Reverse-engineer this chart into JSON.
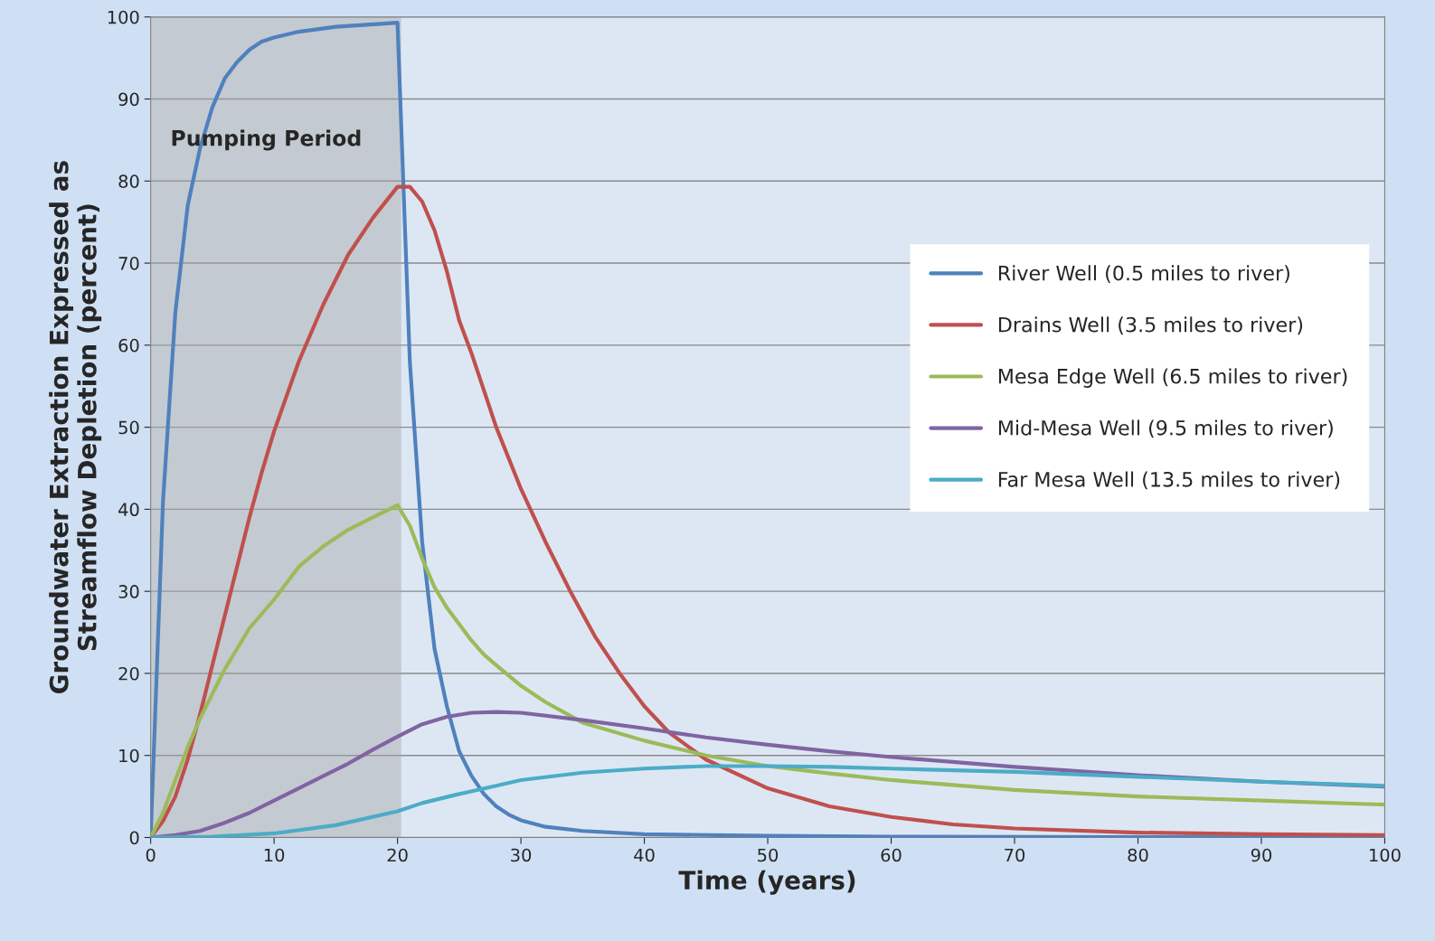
{
  "chart_data": {
    "type": "line",
    "xlabel": "Time (years)",
    "ylabel": "Groundwater Extraction Expressed as\nStreamflow Depletion (percent)",
    "xlim": [
      0,
      100
    ],
    "xticks": [
      0,
      10,
      20,
      30,
      40,
      50,
      60,
      70,
      80,
      90,
      100
    ],
    "ylim": [
      0,
      100
    ],
    "yticks": [
      0,
      10,
      20,
      30,
      40,
      50,
      60,
      70,
      80,
      90,
      100
    ],
    "grid": "y",
    "legend": "right",
    "line_style": "solid",
    "bands": [
      {
        "axis": "x",
        "from": 0,
        "to": 20.3,
        "label": "Pumping Period",
        "color": "#a6a6a6"
      }
    ],
    "series": [
      {
        "name": "River Well (0.5 miles to river)",
        "color": "#4f81bd",
        "x": [
          0,
          1,
          2,
          3,
          4,
          5,
          6,
          7,
          8,
          9,
          10,
          12,
          15,
          20,
          21,
          22,
          23,
          24,
          25,
          26,
          27,
          28,
          29,
          30,
          32,
          35,
          40,
          50,
          60,
          100
        ],
        "values": [
          0,
          41,
          64,
          77,
          84,
          89,
          92.5,
          94.5,
          96,
          97,
          97.5,
          98.2,
          98.8,
          99.3,
          58,
          36,
          23,
          16,
          10.5,
          7.5,
          5.3,
          3.8,
          2.8,
          2.1,
          1.3,
          0.8,
          0.4,
          0.2,
          0.1,
          0
        ]
      },
      {
        "name": "Drains Well (3.5 miles to river)",
        "color": "#c0504d",
        "x": [
          0,
          1,
          2,
          3,
          4,
          5,
          6,
          7,
          8,
          9,
          10,
          12,
          14,
          16,
          18,
          20,
          21,
          22,
          23,
          24,
          25,
          26,
          28,
          30,
          32,
          34,
          36,
          38,
          40,
          42,
          45,
          50,
          55,
          60,
          65,
          70,
          80,
          90,
          100
        ],
        "values": [
          0,
          2,
          5,
          9.5,
          15,
          21,
          27,
          33,
          39,
          44.5,
          49.5,
          58,
          65,
          71,
          75.5,
          79.3,
          79.3,
          77.5,
          74,
          69,
          63,
          59,
          50,
          42.5,
          36,
          30,
          24.5,
          20,
          16,
          12.8,
          9.5,
          6,
          3.8,
          2.5,
          1.6,
          1.1,
          0.6,
          0.4,
          0.3
        ]
      },
      {
        "name": "Mesa Edge Well (6.5 miles to river)",
        "color": "#9bbb59",
        "x": [
          0,
          1,
          2,
          3,
          4,
          5,
          6,
          7,
          8,
          10,
          12,
          14,
          16,
          18,
          20,
          21,
          22,
          23,
          24,
          25,
          26,
          27,
          28,
          30,
          32,
          35,
          40,
          45,
          50,
          55,
          60,
          70,
          80,
          90,
          100
        ],
        "values": [
          0,
          3,
          7,
          11,
          14.5,
          17.5,
          20.5,
          23,
          25.5,
          29,
          33,
          35.5,
          37.5,
          39,
          40.5,
          38,
          34,
          30.5,
          28,
          26,
          24,
          22.3,
          21,
          18.5,
          16.5,
          14,
          11.8,
          10,
          8.7,
          7.8,
          7,
          5.8,
          5,
          4.5,
          4
        ]
      },
      {
        "name": "Mid-Mesa Well (9.5 miles to river)",
        "color": "#8064a2",
        "x": [
          0,
          2,
          4,
          6,
          8,
          10,
          12,
          14,
          16,
          18,
          20,
          22,
          24,
          26,
          28,
          30,
          35,
          40,
          45,
          50,
          55,
          60,
          70,
          80,
          90,
          100
        ],
        "values": [
          0,
          0.3,
          0.8,
          1.8,
          3,
          4.5,
          6,
          7.5,
          9,
          10.7,
          12.3,
          13.8,
          14.7,
          15.2,
          15.3,
          15.2,
          14.3,
          13.3,
          12.2,
          11.3,
          10.5,
          9.8,
          8.6,
          7.6,
          6.8,
          6.2
        ]
      },
      {
        "name": "Far Mesa Well (13.5 miles to river)",
        "color": "#4bacc6",
        "x": [
          0,
          5,
          10,
          15,
          20,
          22,
          25,
          28,
          30,
          35,
          40,
          45,
          50,
          55,
          60,
          70,
          80,
          90,
          100
        ],
        "values": [
          0,
          0.1,
          0.5,
          1.5,
          3.2,
          4.2,
          5.3,
          6.3,
          7,
          7.9,
          8.4,
          8.7,
          8.7,
          8.6,
          8.4,
          8,
          7.4,
          6.8,
          6.3
        ]
      }
    ]
  }
}
